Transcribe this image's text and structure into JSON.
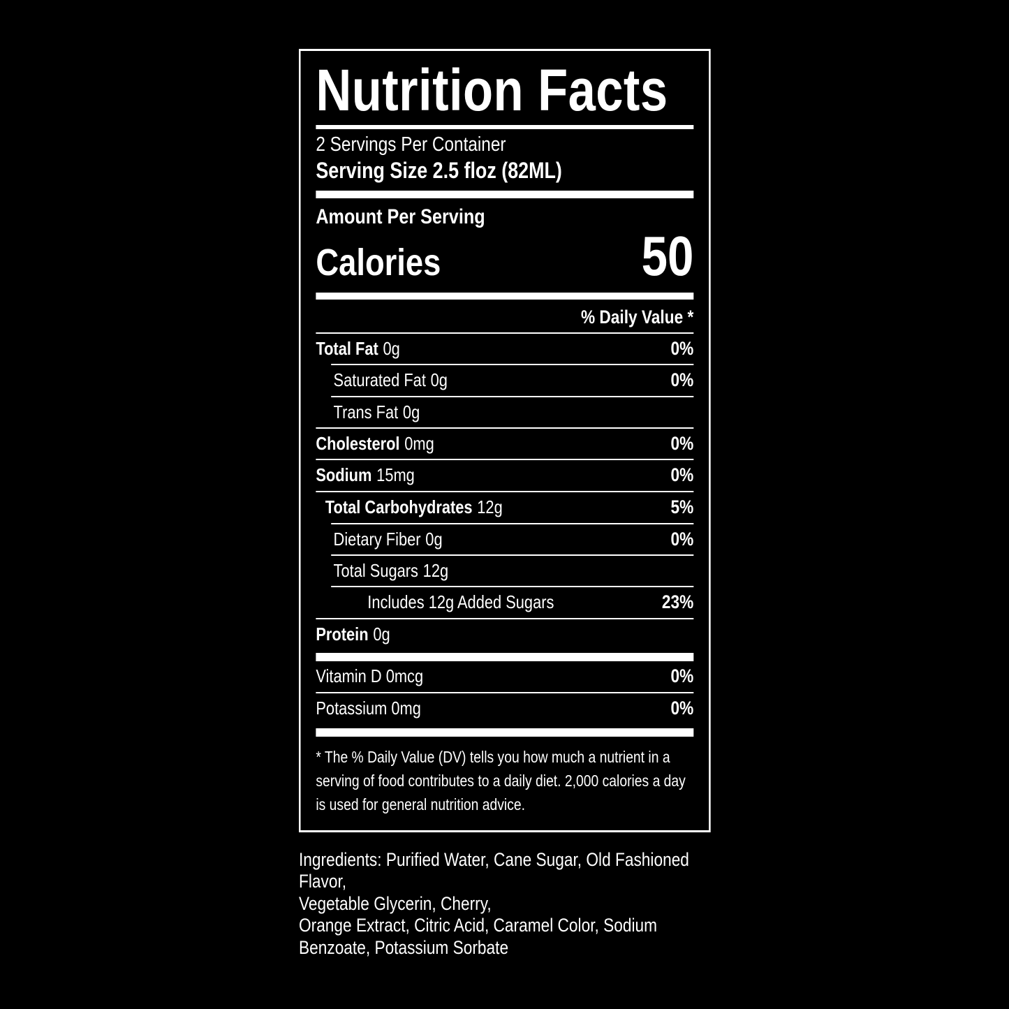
{
  "label": {
    "title": "Nutrition Facts",
    "servings_per_container": "2 Servings Per Container",
    "serving_size": "Serving Size 2.5 floz (82ML)",
    "amount_per_serving": "Amount Per Serving",
    "calories_label": "Calories",
    "calories_value": "50",
    "daily_value_header": "% Daily Value *",
    "rows": [
      {
        "name": "Total Fat",
        "amount": "0g",
        "dv": "0%"
      },
      {
        "name": "Saturated Fat",
        "amount": "0g",
        "dv": "0%"
      },
      {
        "name": "Trans Fat",
        "amount": "0g",
        "dv": ""
      },
      {
        "name": "Cholesterol",
        "amount": "0mg",
        "dv": "0%"
      },
      {
        "name": "Sodium",
        "amount": "15mg",
        "dv": "0%"
      },
      {
        "name": "Total Carbohydrates",
        "amount": "12g",
        "dv": "5%"
      },
      {
        "name": "Dietary Fiber",
        "amount": "0g",
        "dv": "0%"
      },
      {
        "name": "Total Sugars",
        "amount": "12g",
        "dv": ""
      },
      {
        "name": "Includes 12g Added Sugars",
        "amount": "",
        "dv": "23%"
      },
      {
        "name": "Protein",
        "amount": "0g",
        "dv": ""
      }
    ],
    "micronutrients": [
      {
        "name": "Vitamin D 0mcg",
        "dv": "0%"
      },
      {
        "name": "Potassium 0mg",
        "dv": "0%"
      }
    ],
    "footnote": "* The % Daily Value (DV) tells you how much a nutrient in a serving of food contributes to a daily diet. 2,000 calories a day is used for general nutrition advice."
  },
  "ingredients": {
    "lines": [
      "Ingredients: Purified Water, Cane Sugar, Old Fashioned Flavor,",
      "Vegetable Glycerin, Cherry,",
      "Orange Extract, Citric Acid, Caramel Color, Sodium",
      "Benzoate, Potassium Sorbate"
    ]
  },
  "colors": {
    "background": "#000000",
    "foreground": "#ffffff"
  }
}
